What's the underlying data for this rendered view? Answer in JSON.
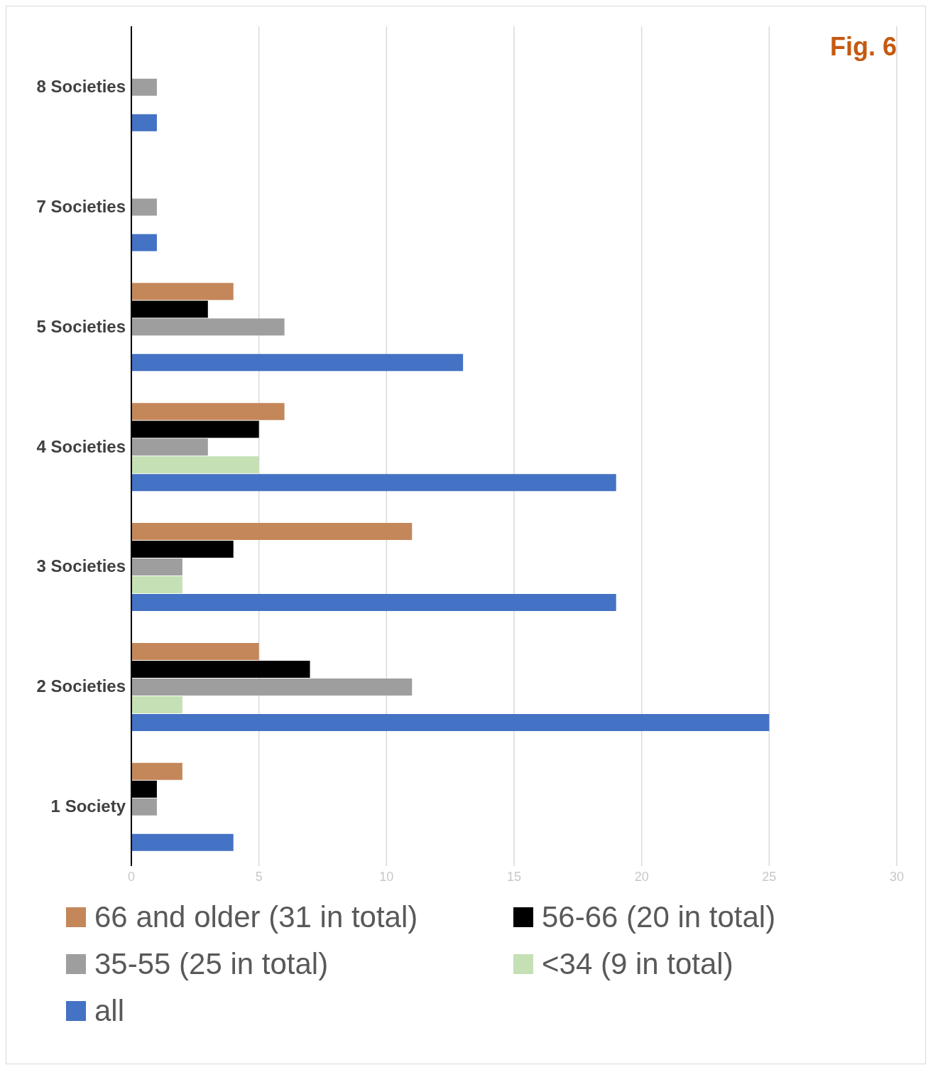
{
  "chart_data": {
    "type": "bar",
    "orientation": "horizontal",
    "title": "Fig. 6",
    "categories": [
      "8 Societies",
      "7 Societies",
      "5 Societies",
      "4 Societies",
      "3 Societies",
      "2 Societies",
      "1 Society"
    ],
    "series": [
      {
        "name": "66 and older (31 in total)",
        "color": "#c4875a",
        "values": [
          0,
          0,
          4,
          6,
          11,
          5,
          2
        ]
      },
      {
        "name": "56-66 (20 in total)",
        "color": "#000000",
        "values": [
          0,
          0,
          3,
          5,
          4,
          7,
          1
        ]
      },
      {
        "name": "35-55 (25 in total)",
        "color": "#9e9e9e",
        "values": [
          1,
          1,
          6,
          3,
          2,
          11,
          1
        ]
      },
      {
        "name": "<34 (9 in total)",
        "color": "#c5e0b4",
        "values": [
          0,
          0,
          0,
          5,
          2,
          2,
          0
        ]
      },
      {
        "name": "all",
        "color": "#4472c4",
        "values": [
          1,
          1,
          13,
          19,
          19,
          25,
          4
        ]
      }
    ],
    "xlim": [
      0,
      30
    ],
    "xticks": [
      0,
      5,
      10,
      15,
      20,
      25,
      30
    ],
    "grid": "x",
    "legend": "bottom"
  }
}
